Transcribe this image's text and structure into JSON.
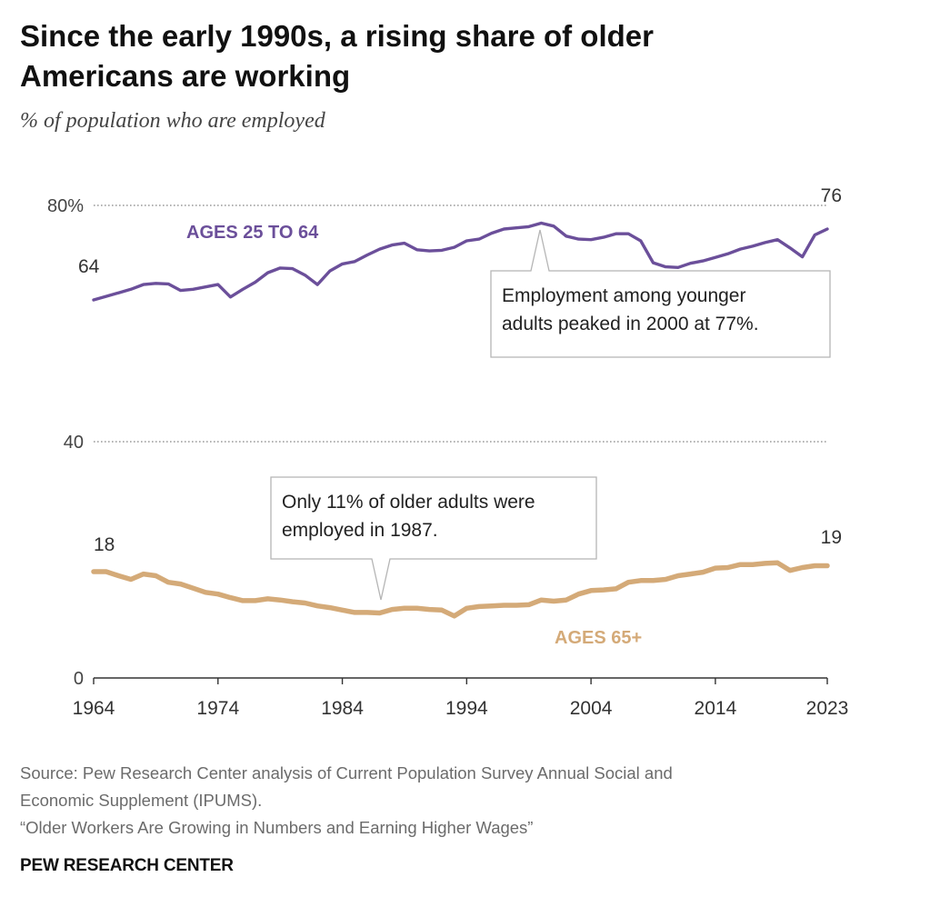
{
  "header": {
    "title_line1": "Since the early 1990s, a rising share of older",
    "title_line2": "Americans are working",
    "subtitle": "% of population who are employed"
  },
  "chart_data": {
    "type": "line",
    "x_ticks": [
      "1964",
      "1974",
      "1984",
      "1994",
      "2004",
      "2014",
      "2023"
    ],
    "y_ticks": [
      "0",
      "40",
      "80%"
    ],
    "ylim": [
      0,
      80
    ],
    "xlim": [
      1964,
      2023
    ],
    "grid": true,
    "colors": {
      "ages_25_64": "#6b4f9a",
      "ages_65_plus": "#d4aa78"
    },
    "series": [
      {
        "name": "AGES 25 TO 64",
        "start_label": "64",
        "end_label": "76",
        "x": [
          1964,
          1965,
          1966,
          1967,
          1968,
          1969,
          1970,
          1971,
          1972,
          1973,
          1974,
          1975,
          1976,
          1977,
          1978,
          1979,
          1980,
          1981,
          1982,
          1983,
          1984,
          1985,
          1986,
          1987,
          1988,
          1989,
          1990,
          1991,
          1992,
          1993,
          1994,
          1995,
          1996,
          1997,
          1998,
          1999,
          2000,
          2001,
          2002,
          2003,
          2004,
          2005,
          2006,
          2007,
          2008,
          2009,
          2010,
          2011,
          2012,
          2013,
          2014,
          2015,
          2016,
          2017,
          2018,
          2019,
          2020,
          2021,
          2022,
          2023
        ],
        "values": [
          64,
          64.6,
          65.2,
          65.8,
          66.6,
          66.8,
          66.7,
          65.6,
          65.8,
          66.2,
          66.6,
          64.5,
          65.8,
          67.0,
          68.6,
          69.4,
          69.3,
          68.2,
          66.6,
          68.9,
          70.1,
          70.5,
          71.6,
          72.6,
          73.3,
          73.6,
          72.5,
          72.3,
          72.4,
          72.9,
          74.0,
          74.3,
          75.3,
          76.0,
          76.2,
          76.4,
          77.0,
          76.5,
          74.8,
          74.3,
          74.2,
          74.6,
          75.2,
          75.2,
          74.0,
          70.3,
          69.6,
          69.5,
          70.2,
          70.6,
          71.2,
          71.8,
          72.6,
          73.1,
          73.7,
          74.2,
          72.8,
          71.3,
          75.0,
          76
        ]
      },
      {
        "name": "AGES 65+",
        "start_label": "18",
        "end_label": "19",
        "x": [
          1964,
          1965,
          1966,
          1967,
          1968,
          1969,
          1970,
          1971,
          1972,
          1973,
          1974,
          1975,
          1976,
          1977,
          1978,
          1979,
          1980,
          1981,
          1982,
          1983,
          1984,
          1985,
          1986,
          1987,
          1988,
          1989,
          1990,
          1991,
          1992,
          1993,
          1994,
          1995,
          1996,
          1997,
          1998,
          1999,
          2000,
          2001,
          2002,
          2003,
          2004,
          2005,
          2006,
          2007,
          2008,
          2009,
          2010,
          2011,
          2012,
          2013,
          2014,
          2015,
          2016,
          2017,
          2018,
          2019,
          2020,
          2021,
          2022,
          2023
        ],
        "values": [
          18,
          18,
          17.3,
          16.7,
          17.6,
          17.3,
          16.2,
          15.9,
          15.2,
          14.5,
          14.2,
          13.6,
          13.1,
          13.1,
          13.4,
          13.2,
          12.9,
          12.7,
          12.2,
          11.9,
          11.5,
          11.1,
          11.1,
          11,
          11.6,
          11.8,
          11.8,
          11.6,
          11.5,
          10.5,
          11.8,
          12.1,
          12.2,
          12.3,
          12.3,
          12.4,
          13.2,
          13.0,
          13.2,
          14.2,
          14.8,
          14.9,
          15.1,
          16.2,
          16.5,
          16.5,
          16.7,
          17.3,
          17.6,
          17.9,
          18.6,
          18.7,
          19.2,
          19.2,
          19.4,
          19.5,
          18.2,
          18.7,
          19.0,
          19
        ]
      }
    ],
    "annotations": [
      {
        "lines": [
          "Employment among younger",
          "adults peaked in 2000 at 77%."
        ],
        "x": 2000,
        "y": 77
      },
      {
        "lines": [
          "Only 11% of older adults were",
          "employed in 1987."
        ],
        "x": 1987,
        "y": 11
      }
    ]
  },
  "footer": {
    "source_line1": "Source: Pew Research Center analysis of Current Population Survey Annual Social and",
    "source_line2": "Economic Supplement (IPUMS).",
    "source_line3": "“Older Workers Are Growing in Numbers and Earning Higher Wages”",
    "brand": "PEW RESEARCH CENTER"
  }
}
